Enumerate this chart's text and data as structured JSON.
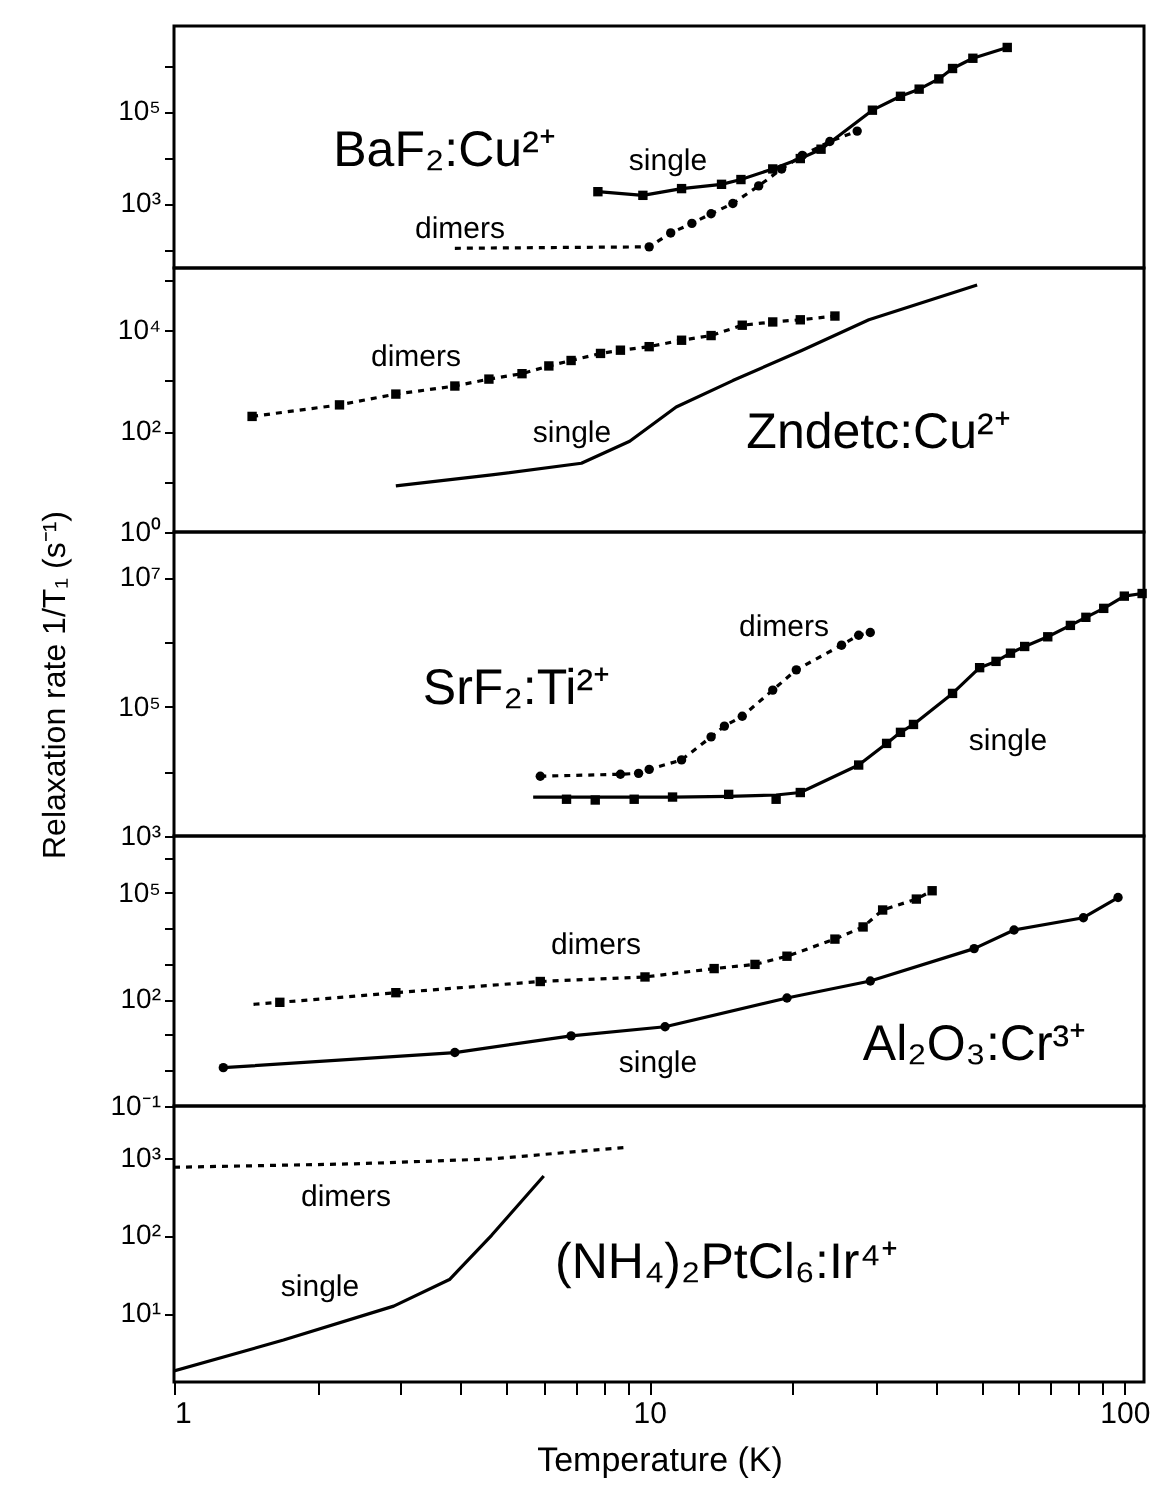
{
  "chart_data": [
    {
      "type": "line",
      "title": "BaF₂:Cu²⁺",
      "log": "xy",
      "xlim": [
        1,
        110
      ],
      "ylim": [
        40,
        7000000
      ],
      "tick_labels": "y",
      "grid": false,
      "yticks": [
        {
          "value": 100,
          "label": null
        },
        {
          "value": 1000,
          "label": "10³"
        },
        {
          "value": 10000,
          "label": null
        },
        {
          "value": 100000,
          "label": "10⁵"
        },
        {
          "value": 1000000,
          "label": null
        }
      ],
      "series": [
        {
          "type": "line",
          "name": "single",
          "color": "#000000",
          "line_style": "solid",
          "marker": "square",
          "x": [
            7.8,
            9.7,
            11.7,
            14.2,
            15.6,
            18.2,
            20.8,
            23,
            29.5,
            33.8,
            37,
            40.7,
            43.5,
            48,
            56.7
          ],
          "values": [
            1800,
            1500,
            2100,
            2600,
            3300,
            5600,
            9400,
            15000,
            105000,
            210000,
            300000,
            500000,
            840000,
            1400000,
            2400000
          ]
        },
        {
          "type": "line",
          "name": "dimers",
          "color": "#000000",
          "line_style": "dotted",
          "marker": "none",
          "x": [
            3.9,
            10,
            11.1,
            12.3,
            13.5,
            15,
            17,
            19,
            21,
            24,
            27.4
          ],
          "values": [
            107,
            115,
            230,
            370,
            600,
            1000,
            2400,
            5600,
            11000,
            22000,
            37000
          ]
        },
        {
          "type": "scatter",
          "color": "#000000",
          "marker": "circle",
          "x": [
            10,
            11.1,
            12.3,
            13.5,
            15,
            17,
            19,
            21,
            24,
            27.4
          ],
          "values": [
            115,
            230,
            370,
            600,
            1000,
            2400,
            5600,
            11000,
            22000,
            37000
          ]
        }
      ]
    },
    {
      "type": "line",
      "title": "Zndetc:Cu²⁺",
      "log": "xy",
      "xlim": [
        1,
        110
      ],
      "ylim": [
        1,
        170000
      ],
      "tick_labels": "y",
      "grid": false,
      "yticks": [
        {
          "value": 1,
          "label": "10⁰"
        },
        {
          "value": 10,
          "label": null
        },
        {
          "value": 100,
          "label": "10²"
        },
        {
          "value": 1000,
          "label": null
        },
        {
          "value": 10000,
          "label": "10⁴"
        },
        {
          "value": 100000,
          "label": null
        }
      ],
      "series": [
        {
          "type": "line",
          "name": "dimers",
          "color": "#000000",
          "line_style": "dotted",
          "marker": "square",
          "x": [
            1.46,
            2.23,
            2.93,
            3.9,
            4.6,
            5.4,
            6.15,
            6.85,
            7.9,
            8.7,
            10,
            11.7,
            13.5,
            15.7,
            18.2,
            20.8,
            24.6
          ],
          "values": [
            195,
            330,
            540,
            780,
            1070,
            1370,
            1950,
            2500,
            3450,
            4000,
            4700,
            6300,
            7800,
            12500,
            14500,
            16000,
            19000
          ]
        },
        {
          "type": "line",
          "name": "single",
          "color": "#000000",
          "line_style": "solid",
          "marker": "none",
          "x": [
            2.93,
            4.66,
            7.2,
            9.1,
            11.4,
            15,
            21,
            29,
            49
          ],
          "values": [
            8.2,
            13.5,
            23,
            63,
            300,
            1000,
            4000,
            16000,
            78000
          ]
        }
      ]
    },
    {
      "type": "line",
      "title": "SrF₂:Ti²⁺",
      "ylabel": "Relaxation rate 1/T₁ (s⁻¹)",
      "log": "xy",
      "xlim": [
        1,
        110
      ],
      "ylim": [
        1000,
        50000000
      ],
      "tick_labels": "y",
      "grid": false,
      "yticks": [
        {
          "value": 1000,
          "label": "10³"
        },
        {
          "value": 10000,
          "label": null
        },
        {
          "value": 100000,
          "label": "10⁵"
        },
        {
          "value": 1000000,
          "label": null
        },
        {
          "value": 10000000,
          "label": "10⁷"
        }
      ],
      "series": [
        {
          "type": "line",
          "name": "single",
          "color": "#000000",
          "line_style": "solid",
          "marker": "none",
          "x": [
            5.7,
            6.7,
            7.7,
            9.3,
            11.2,
            14.7,
            18.5,
            20.8,
            27.6,
            31.6,
            33.8,
            36,
            43.5,
            49.6,
            53.7,
            57.6,
            61.7,
            69,
            77,
            83,
            90.5,
            100,
            109
          ],
          "values": [
            4000,
            4000,
            4000,
            4000,
            4000,
            4100,
            4300,
            4700,
            12500,
            27000,
            40000,
            53000,
            160000,
            400000,
            500000,
            670000,
            850000,
            1200000,
            1800000,
            2400000,
            3300000,
            5100000,
            5600000
          ]
        },
        {
          "type": "scatter",
          "color": "#000000",
          "marker": "square",
          "x": [
            6.7,
            7.7,
            9.3,
            11.2,
            14.7,
            18.5,
            20.8,
            27.6,
            31.6,
            33.8,
            36,
            43.5,
            49.6,
            53.7,
            57.6,
            61.7,
            69,
            77,
            83,
            90.5,
            100,
            109
          ],
          "values": [
            3700,
            3600,
            3700,
            4000,
            4400,
            3700,
            4700,
            12500,
            27000,
            40000,
            53000,
            160000,
            400000,
            500000,
            670000,
            850000,
            1200000,
            1800000,
            2400000,
            3300000,
            5100000,
            5600000
          ]
        },
        {
          "type": "line",
          "name": "dimers",
          "color": "#000000",
          "line_style": "dotted",
          "marker": "circle",
          "x": [
            5.9,
            8.7,
            9.5,
            10,
            11.7,
            13.5,
            14.4,
            15.7,
            18.2,
            20.4,
            25.4,
            27.6,
            29.2
          ],
          "values": [
            8400,
            9000,
            9300,
            10700,
            15000,
            34000,
            50000,
            71000,
            180000,
            370000,
            890000,
            1270000,
            1400000
          ]
        }
      ]
    },
    {
      "type": "line",
      "title": "Al₂O₃:Cr³⁺",
      "log": "xy",
      "xlim": [
        1,
        110
      ],
      "ylim": [
        0.1,
        4000000
      ],
      "tick_labels": "y",
      "grid": false,
      "yticks": [
        {
          "value": 0.1,
          "label": "10⁻¹"
        },
        {
          "value": 1,
          "label": null
        },
        {
          "value": 10,
          "label": null
        },
        {
          "value": 100,
          "label": "10²"
        },
        {
          "value": 1000,
          "label": null
        },
        {
          "value": 10000,
          "label": null
        },
        {
          "value": 100000,
          "label": "10⁵"
        },
        {
          "value": 1000000,
          "label": null
        }
      ],
      "series": [
        {
          "type": "line",
          "name": "dimers",
          "color": "#000000",
          "line_style": "dotted",
          "marker": "none",
          "x": [
            1.47,
            1.67,
            2.93,
            5.9,
            9.8,
            13.7,
            16.7,
            19.5,
            24.6,
            28.2,
            31,
            36.5,
            39.4
          ],
          "values": [
            73,
            83,
            155,
            320,
            430,
            740,
            970,
            1650,
            5000,
            11000,
            33000,
            67000,
            115000
          ]
        },
        {
          "type": "scatter",
          "color": "#000000",
          "marker": "square",
          "x": [
            1.67,
            2.93,
            5.9,
            9.8,
            13.7,
            16.7,
            19.5,
            24.6,
            28.2,
            31,
            36.5,
            39.4
          ],
          "values": [
            83,
            155,
            320,
            430,
            740,
            970,
            1650,
            5000,
            11000,
            33000,
            67000,
            115000
          ]
        },
        {
          "type": "line",
          "name": "single",
          "color": "#000000",
          "line_style": "solid",
          "marker": "circle",
          "x": [
            1.27,
            3.9,
            6.85,
            10.8,
            19.5,
            29.2,
            48.3,
            58.6,
            82,
            97
          ],
          "values": [
            1.2,
            3.2,
            9.4,
            17,
            110,
            330,
            2700,
            9000,
            20000,
            74000
          ]
        }
      ]
    },
    {
      "type": "line",
      "title": "(NH₄)₂PtCl₆:Ir⁴⁺",
      "xlabel": "Temperature (K)",
      "log": "xy",
      "xlim": [
        1,
        110
      ],
      "ylim": [
        1.3,
        4600
      ],
      "grid": false,
      "xticks": [
        1,
        {
          "value": 2,
          "label": null
        },
        {
          "value": 3,
          "label": null
        },
        {
          "value": 4,
          "label": null
        },
        {
          "value": 5,
          "label": null
        },
        {
          "value": 6,
          "label": null
        },
        {
          "value": 7,
          "label": null
        },
        {
          "value": 8,
          "label": null
        },
        {
          "value": 9,
          "label": null
        },
        10,
        {
          "value": 20,
          "label": null
        },
        {
          "value": 30,
          "label": null
        },
        {
          "value": 40,
          "label": null
        },
        {
          "value": 50,
          "label": null
        },
        {
          "value": 60,
          "label": null
        },
        {
          "value": 70,
          "label": null
        },
        {
          "value": 80,
          "label": null
        },
        {
          "value": 90,
          "label": null
        },
        100
      ],
      "yticks": [
        {
          "value": 10,
          "label": "10¹"
        },
        {
          "value": 100,
          "label": "10²"
        },
        {
          "value": 1000,
          "label": "10³"
        }
      ],
      "series": [
        {
          "type": "line",
          "name": "dimers",
          "color": "#000000",
          "line_style": "dotted",
          "marker": "none",
          "x": [
            1,
            2.4,
            4.66,
            8.9
          ],
          "values": [
            750,
            830,
            960,
            1350
          ]
        },
        {
          "type": "line",
          "name": "single",
          "color": "#000000",
          "line_style": "solid",
          "marker": "none",
          "x": [
            1,
            1.7,
            2.9,
            3.8,
            4.66,
            6
          ],
          "values": [
            1.8,
            4.5,
            12.3,
            27,
            100,
            580
          ]
        }
      ]
    }
  ]
}
